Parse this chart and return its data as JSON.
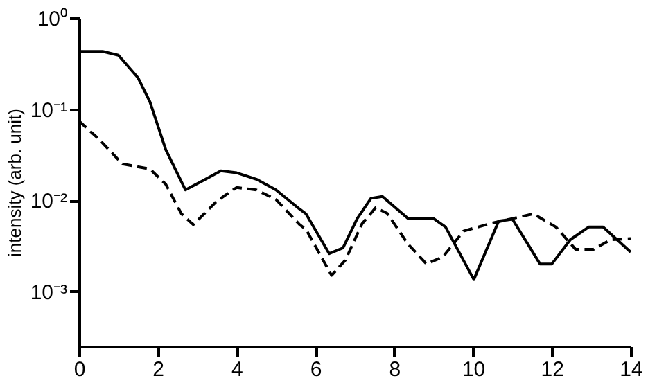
{
  "chart_data": {
    "type": "line",
    "ylabel": "intensity (arb. unit)",
    "log": "y",
    "grid": false,
    "marker": "none",
    "xlim": [
      0,
      14
    ],
    "xticks": [
      0,
      2,
      4,
      6,
      8,
      10,
      12,
      14
    ],
    "ylim": [
      0.00025,
      1
    ],
    "yticks": [
      {
        "value": 1,
        "label": "10⁰"
      },
      {
        "value": 0.1,
        "label": "10⁻¹"
      },
      {
        "value": 0.01,
        "label": "10⁻²"
      },
      {
        "value": 0.001,
        "label": "10⁻³"
      }
    ],
    "series": [
      {
        "color": "#000000",
        "line_style": "solid",
        "x": [
          0,
          0.6,
          1,
          1.5,
          1.8,
          2.2,
          2.7,
          3.1,
          3.6,
          4,
          4.5,
          5,
          5.6,
          5.76,
          6.35,
          6.7,
          7.06,
          7.41,
          7.7,
          8.35,
          9,
          9.3,
          10.02,
          10.65,
          11,
          11.7,
          12,
          12.47,
          12.94,
          13.3,
          14
        ],
        "values": [
          0.43,
          0.43,
          0.39,
          0.22,
          0.12,
          0.036,
          0.013,
          0.016,
          0.021,
          0.02,
          0.017,
          0.013,
          0.008,
          0.0071,
          0.0026,
          0.003,
          0.0063,
          0.0105,
          0.011,
          0.0063,
          0.0063,
          0.0051,
          0.00135,
          0.0059,
          0.0062,
          0.002,
          0.002,
          0.0037,
          0.0051,
          0.0051,
          0.0027
        ]
      },
      {
        "color": "#000000",
        "line_style": "dashed",
        "x": [
          0,
          0.5,
          1.1,
          1.8,
          2.2,
          2.6,
          2.9,
          3.5,
          4,
          4.5,
          5,
          5.6,
          5.76,
          6.41,
          6.76,
          7.18,
          7.53,
          7.82,
          8.35,
          8.82,
          9.24,
          9.76,
          10.47,
          11,
          11.53,
          12.1,
          12.6,
          13.06,
          13.5,
          14
        ],
        "values": [
          0.074,
          0.047,
          0.025,
          0.022,
          0.015,
          0.0071,
          0.0054,
          0.0098,
          0.0138,
          0.013,
          0.0102,
          0.0054,
          0.0048,
          0.0015,
          0.0022,
          0.0055,
          0.0083,
          0.0072,
          0.0033,
          0.002,
          0.0024,
          0.0046,
          0.0056,
          0.0063,
          0.0071,
          0.0051,
          0.0029,
          0.0029,
          0.0037,
          0.0038
        ]
      }
    ]
  }
}
